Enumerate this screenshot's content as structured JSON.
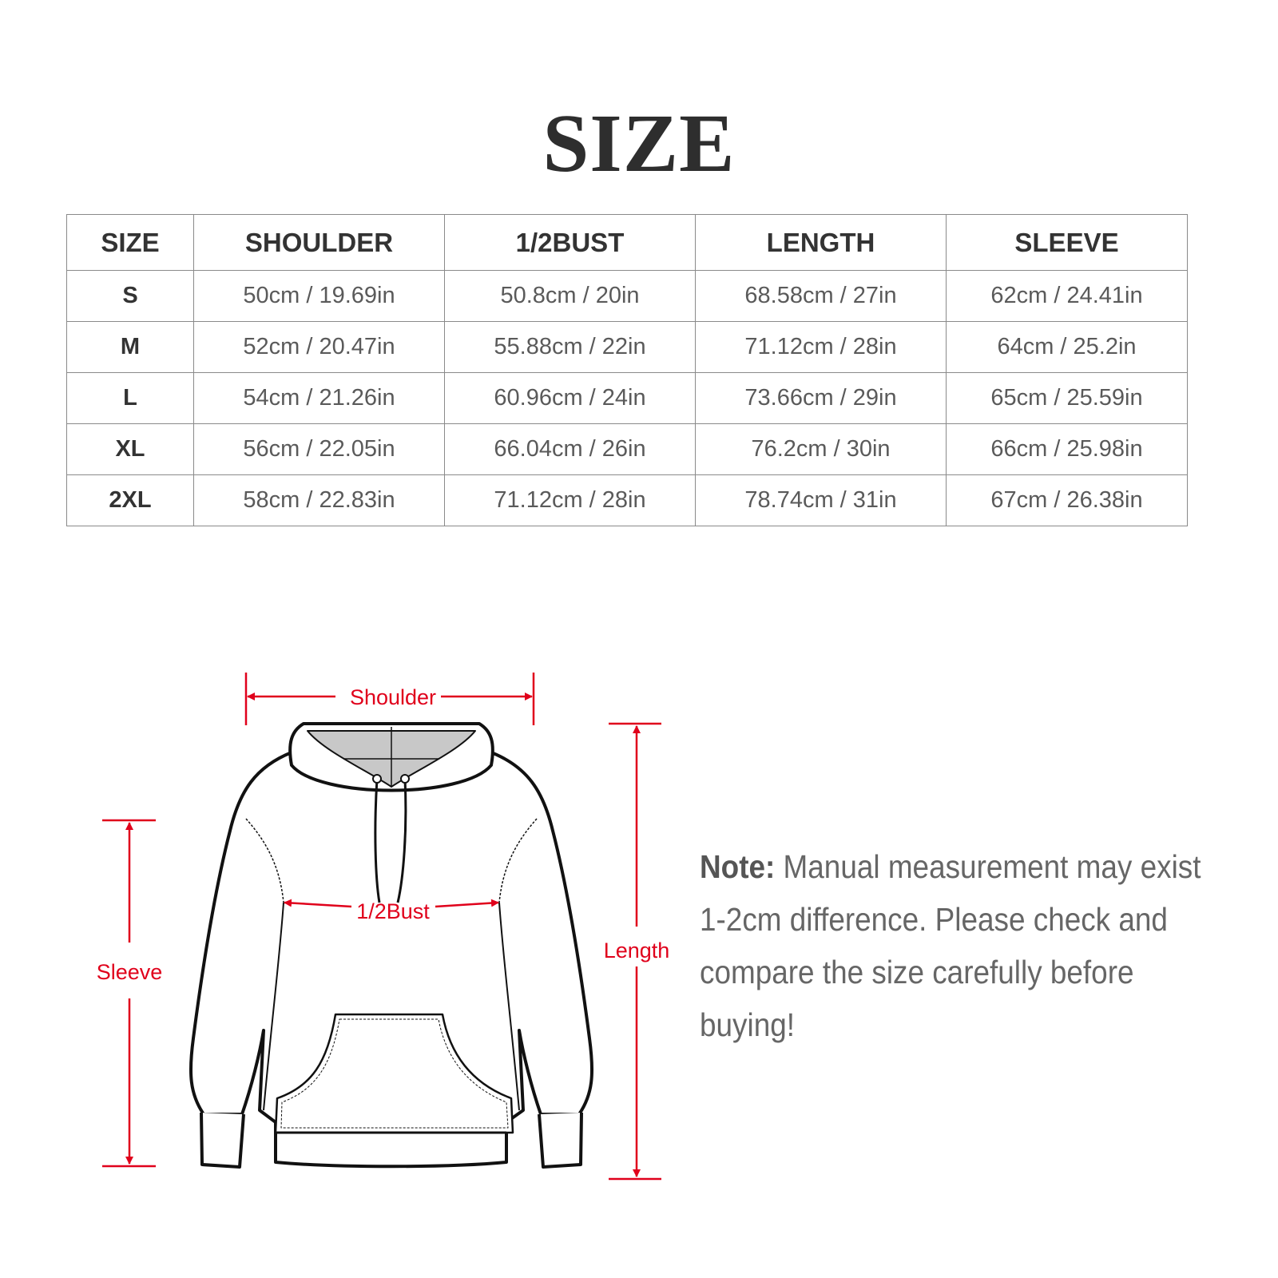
{
  "title": "SIZE",
  "table": {
    "headers": [
      "SIZE",
      "SHOULDER",
      "1/2BUST",
      "LENGTH",
      "SLEEVE"
    ],
    "rows": [
      [
        "S",
        "50cm / 19.69in",
        "50.8cm / 20in",
        "68.58cm / 27in",
        "62cm / 24.41in"
      ],
      [
        "M",
        "52cm / 20.47in",
        "55.88cm / 22in",
        "71.12cm / 28in",
        "64cm / 25.2in"
      ],
      [
        "L",
        "54cm / 21.26in",
        "60.96cm / 24in",
        "73.66cm / 29in",
        "65cm / 25.59in"
      ],
      [
        "XL",
        "56cm / 22.05in",
        "66.04cm / 26in",
        "76.2cm / 30in",
        "66cm / 25.98in"
      ],
      [
        "2XL",
        "58cm / 22.83in",
        "71.12cm / 28in",
        "78.74cm / 31in",
        "67cm / 26.38in"
      ]
    ]
  },
  "diagram": {
    "shoulder": "Shoulder",
    "bust": "1/2Bust",
    "sleeve": "Sleeve",
    "length": "Length",
    "accent_color": "#e0001b"
  },
  "note": {
    "label": "Note:",
    "text": " Manual measurement may exist 1-2cm difference. Please check and compare the size carefully before buying!"
  }
}
